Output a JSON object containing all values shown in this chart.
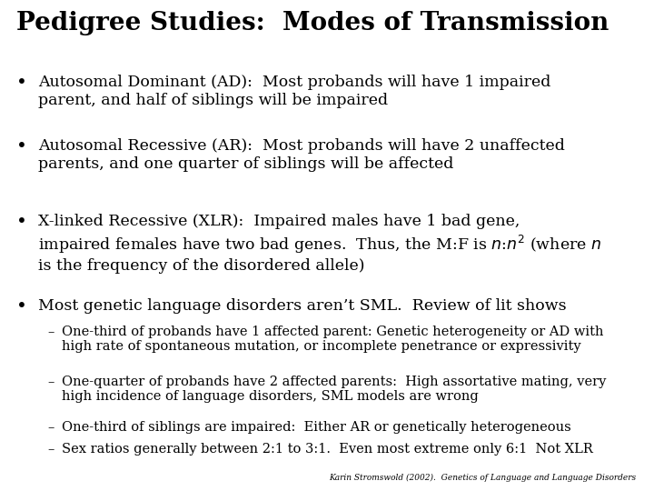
{
  "title": "Pedigree Studies:  Modes of Transmission",
  "background_color": "#ffffff",
  "text_color": "#000000",
  "title_fontsize": 20,
  "body_fontsize": 12.5,
  "sub_fontsize": 10.5,
  "footer_fontsize": 6.5,
  "footer": "Karin Stromswold (2002).  Genetics of Language and Language Disorders",
  "bullets": [
    {
      "text": "Autosomal Dominant (AD):  Most probands will have 1 impaired\nparent, and half of siblings will be impaired",
      "level": 0
    },
    {
      "text": "Autosomal Recessive (AR):  Most probands will have 2 unaffected\nparents, and one quarter of siblings will be affected",
      "level": 0
    },
    {
      "text": "X-linked Recessive (XLR):  Impaired males have 1 bad gene,\nimpaired females have two bad genes.  Thus, the M:F is $n$:$n^2$ (where $n$\nis the frequency of the disordered allele)",
      "level": 0
    },
    {
      "text": "Most genetic language disorders aren’t SML.  Review of lit shows",
      "level": 0
    },
    {
      "text": "One-third of probands have 1 affected parent: Genetic heterogeneity or AD with\nhigh rate of spontaneous mutation, or incomplete penetrance or expressivity",
      "level": 1
    },
    {
      "text": "One-quarter of probands have 2 affected parents:  High assortative mating, very\nhigh incidence of language disorders, SML models are wrong",
      "level": 1
    },
    {
      "text": "One-third of siblings are impaired:  Either AR or genetically heterogeneous",
      "level": 1
    },
    {
      "text": "Sex ratios generally between 2:1 to 3:1.  Even most extreme only 6:1  Not XLR",
      "level": 1
    }
  ]
}
